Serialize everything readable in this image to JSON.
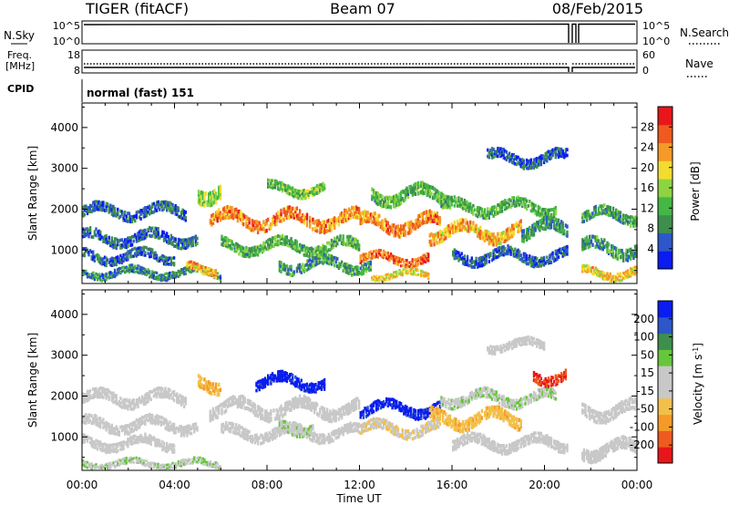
{
  "header": {
    "radar": "TIGER (fitACF)",
    "beam": "Beam 07",
    "date": "08/Feb/2015"
  },
  "aux_labels": {
    "nsky": "N.Sky",
    "nsky_top": "10^5",
    "nsky_bottom": "10^0",
    "nsearch": "N.Search",
    "nsearch_top": "10^5",
    "nsearch_bottom": "10^0",
    "freq_line1": "Freq.",
    "freq_line2": "[MHz]",
    "freq_top": "18",
    "freq_bottom": "8",
    "nave": "Nave",
    "nave_top": "60",
    "nave_bottom": "0",
    "cpid": "CPID",
    "cpid_value": "normal (fast) 151"
  },
  "colors": {
    "power_scale": [
      "#0a1cf0",
      "#2d57c8",
      "#3e8f4e",
      "#43b845",
      "#8ed442",
      "#f3dc2e",
      "#f59a27",
      "#ef5a1f",
      "#e8161a"
    ],
    "velocity_scale": [
      "#e8161a",
      "#ef5a1f",
      "#f59a27",
      "#f2c04a",
      "#c8c8c8",
      "#c8c8c8",
      "#66c63c",
      "#3e8f4e",
      "#2d57c8",
      "#0a1cf0"
    ]
  },
  "chart_data": [
    {
      "type": "heatmap",
      "name": "power",
      "ylabel": "Slant Range [km]",
      "ylim": [
        180,
        4600
      ],
      "yticks": [
        "1000",
        "2000",
        "3000",
        "4000"
      ],
      "xlim": [
        "00:00",
        "24:00"
      ],
      "colorbar_label": "Power [dB]",
      "colorbar_ticks": [
        "4",
        "8",
        "12",
        "16",
        "20",
        "24",
        "28"
      ],
      "colorbar_range": [
        0,
        32
      ],
      "data_gap_hours": [
        [
          21.1,
          21.5
        ]
      ],
      "echo_bands": [
        {
          "t0": 0.0,
          "t1": 4.5,
          "r_center": 1950,
          "r_width": 250,
          "power": 6
        },
        {
          "t0": 0.0,
          "t1": 5.0,
          "r_center": 1300,
          "r_width": 250,
          "power": 6
        },
        {
          "t0": 0.0,
          "t1": 4.0,
          "r_center": 850,
          "r_width": 220,
          "power": 6
        },
        {
          "t0": 0.0,
          "t1": 6.0,
          "r_center": 450,
          "r_width": 180,
          "power": 8
        },
        {
          "t0": 4.5,
          "t1": 5.8,
          "r_center": 550,
          "r_width": 200,
          "power": 22
        },
        {
          "t0": 5.0,
          "t1": 6.0,
          "r_center": 2450,
          "r_width": 350,
          "power": 16
        },
        {
          "t0": 5.5,
          "t1": 12.0,
          "r_center": 1750,
          "r_width": 300,
          "power": 24
        },
        {
          "t0": 6.0,
          "t1": 12.0,
          "r_center": 1100,
          "r_width": 250,
          "power": 12
        },
        {
          "t0": 8.0,
          "t1": 10.5,
          "r_center": 2500,
          "r_width": 220,
          "power": 14
        },
        {
          "t0": 8.5,
          "t1": 12.5,
          "r_center": 650,
          "r_width": 250,
          "power": 10
        },
        {
          "t0": 12.0,
          "t1": 15.0,
          "r_center": 800,
          "r_width": 200,
          "power": 26
        },
        {
          "t0": 12.0,
          "t1": 15.5,
          "r_center": 1650,
          "r_width": 300,
          "power": 24
        },
        {
          "t0": 12.5,
          "t1": 16.0,
          "r_center": 2350,
          "r_width": 300,
          "power": 12
        },
        {
          "t0": 12.5,
          "t1": 15.0,
          "r_center": 400,
          "r_width": 150,
          "power": 20
        },
        {
          "t0": 15.0,
          "t1": 19.0,
          "r_center": 1450,
          "r_width": 300,
          "power": 22
        },
        {
          "t0": 15.5,
          "t1": 20.5,
          "r_center": 2050,
          "r_width": 250,
          "power": 12
        },
        {
          "t0": 16.0,
          "t1": 21.0,
          "r_center": 850,
          "r_width": 250,
          "power": 6
        },
        {
          "t0": 17.5,
          "t1": 21.0,
          "r_center": 3250,
          "r_width": 250,
          "power": 6
        },
        {
          "t0": 19.0,
          "t1": 21.0,
          "r_center": 1500,
          "r_width": 300,
          "power": 10
        },
        {
          "t0": 21.6,
          "t1": 24.0,
          "r_center": 1850,
          "r_width": 250,
          "power": 10
        },
        {
          "t0": 21.6,
          "t1": 24.0,
          "r_center": 1050,
          "r_width": 300,
          "power": 10
        },
        {
          "t0": 21.6,
          "t1": 24.0,
          "r_center": 450,
          "r_width": 200,
          "power": 20
        }
      ]
    },
    {
      "type": "heatmap",
      "name": "velocity",
      "ylabel": "Slant Range [km]",
      "xlabel": "Time UT",
      "ylim": [
        180,
        4600
      ],
      "yticks": [
        "1000",
        "2000",
        "3000",
        "4000"
      ],
      "xticks": [
        "00:00",
        "04:00",
        "08:00",
        "12:00",
        "16:00",
        "20:00",
        "00:00"
      ],
      "xlim": [
        "00:00",
        "24:00"
      ],
      "colorbar_ticks": [
        "200",
        "100",
        "50",
        "15",
        "-15",
        "-50",
        "-100",
        "-200"
      ],
      "colorbar_range": [
        -250,
        250
      ],
      "data_gap_hours": [
        [
          21.1,
          21.5
        ]
      ],
      "echo_bands": [
        {
          "t0": 0.0,
          "t1": 4.5,
          "r_center": 1950,
          "r_width": 250,
          "velocity": 0
        },
        {
          "t0": 0.0,
          "t1": 5.0,
          "r_center": 1300,
          "r_width": 250,
          "velocity": 0
        },
        {
          "t0": 0.0,
          "t1": 4.0,
          "r_center": 850,
          "r_width": 220,
          "velocity": 0
        },
        {
          "t0": 0.0,
          "t1": 6.0,
          "r_center": 350,
          "r_width": 150,
          "velocity": 40
        },
        {
          "t0": 5.0,
          "t1": 6.0,
          "r_center": 2350,
          "r_width": 300,
          "velocity": -90
        },
        {
          "t0": 5.5,
          "t1": 12.0,
          "r_center": 1700,
          "r_width": 300,
          "velocity": 0
        },
        {
          "t0": 6.0,
          "t1": 12.0,
          "r_center": 1100,
          "r_width": 250,
          "velocity": 0
        },
        {
          "t0": 7.5,
          "t1": 10.5,
          "r_center": 2350,
          "r_width": 250,
          "velocity": 220
        },
        {
          "t0": 8.5,
          "t1": 10.0,
          "r_center": 1250,
          "r_width": 250,
          "velocity": 40
        },
        {
          "t0": 12.0,
          "t1": 15.5,
          "r_center": 1700,
          "r_width": 250,
          "velocity": 220
        },
        {
          "t0": 12.0,
          "t1": 15.5,
          "r_center": 1200,
          "r_width": 250,
          "velocity": -40
        },
        {
          "t0": 15.0,
          "t1": 19.0,
          "r_center": 1450,
          "r_width": 300,
          "velocity": -80
        },
        {
          "t0": 15.5,
          "t1": 20.5,
          "r_center": 1950,
          "r_width": 250,
          "velocity": 40
        },
        {
          "t0": 16.0,
          "t1": 21.0,
          "r_center": 850,
          "r_width": 250,
          "velocity": 0
        },
        {
          "t0": 17.5,
          "t1": 20.0,
          "r_center": 3250,
          "r_width": 200,
          "velocity": 0
        },
        {
          "t0": 19.5,
          "t1": 21.0,
          "r_center": 2500,
          "r_width": 250,
          "velocity": -200
        },
        {
          "t0": 21.6,
          "t1": 24.0,
          "r_center": 1650,
          "r_width": 300,
          "velocity": 0
        },
        {
          "t0": 21.6,
          "t1": 24.0,
          "r_center": 700,
          "r_width": 300,
          "velocity": 0
        }
      ]
    }
  ]
}
